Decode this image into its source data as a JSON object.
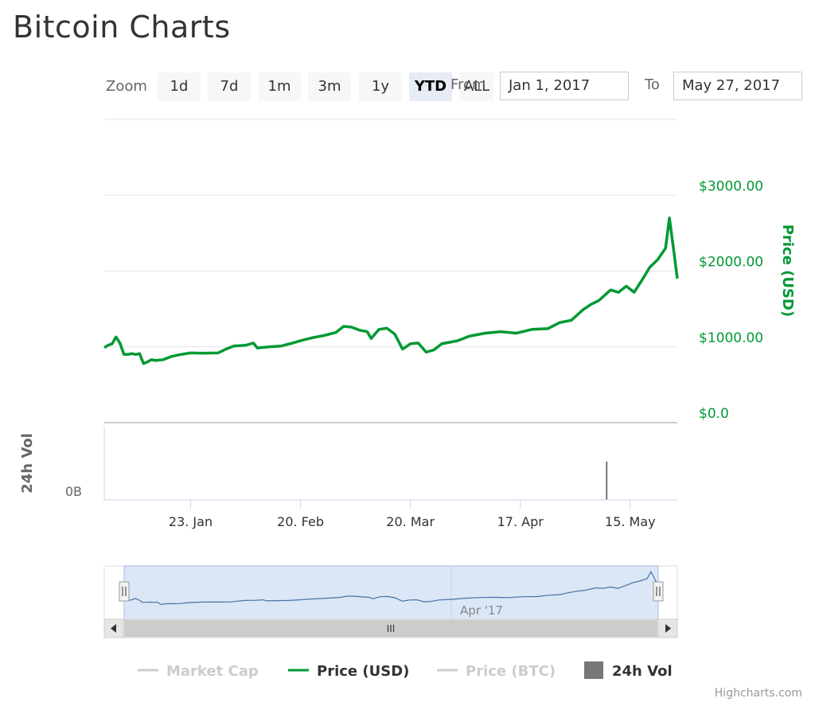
{
  "page": {
    "title": "Bitcoin Charts",
    "credits": "Highcharts.com"
  },
  "range_selector": {
    "zoom_label": "Zoom",
    "buttons": [
      "1d",
      "7d",
      "1m",
      "3m",
      "1y",
      "YTD",
      "ALL"
    ],
    "selected": "YTD",
    "from_label": "From",
    "from_value": "Jan 1, 2017",
    "to_label": "To",
    "to_value": "May 27, 2017"
  },
  "colors": {
    "price_usd": "#009933",
    "market_cap": "#cccccc",
    "price_btc": "#cccccc",
    "volume": "#777777",
    "navigator_fill": "#dbe7f6",
    "navigator_line": "#4572a7"
  },
  "chart_data": {
    "type": "line",
    "x_start": "2017-01-01",
    "x_end": "2017-05-27",
    "xaxis_ticks": [
      "23. Jan",
      "20. Feb",
      "20. Mar",
      "17. Apr",
      "15. May"
    ],
    "xaxis_tick_dates": [
      "2017-01-23",
      "2017-02-20",
      "2017-03-20",
      "2017-04-17",
      "2017-05-15"
    ],
    "price_axis": {
      "title": "Price (USD)",
      "ticks": [
        "$0.0",
        "$1000.00",
        "$2000.00",
        "$3000.00"
      ],
      "tick_values": [
        0,
        1000,
        2000,
        3000
      ],
      "ylim": [
        0,
        4000
      ],
      "position": "right"
    },
    "volume_axis": {
      "title": "24h Vol",
      "ticks": [
        "0B"
      ],
      "position": "left"
    },
    "series": [
      {
        "name": "Price (USD)",
        "visible": true,
        "points": [
          [
            "2017-01-01",
            990
          ],
          [
            "2017-01-02",
            1020
          ],
          [
            "2017-01-03",
            1040
          ],
          [
            "2017-01-04",
            1130
          ],
          [
            "2017-01-05",
            1050
          ],
          [
            "2017-01-06",
            900
          ],
          [
            "2017-01-07",
            900
          ],
          [
            "2017-01-08",
            910
          ],
          [
            "2017-01-09",
            900
          ],
          [
            "2017-01-10",
            910
          ],
          [
            "2017-01-11",
            780
          ],
          [
            "2017-01-12",
            800
          ],
          [
            "2017-01-13",
            830
          ],
          [
            "2017-01-14",
            820
          ],
          [
            "2017-01-16",
            830
          ],
          [
            "2017-01-18",
            870
          ],
          [
            "2017-01-20",
            895
          ],
          [
            "2017-01-23",
            920
          ],
          [
            "2017-01-26",
            915
          ],
          [
            "2017-01-30",
            920
          ],
          [
            "2017-02-01",
            970
          ],
          [
            "2017-02-03",
            1010
          ],
          [
            "2017-02-06",
            1020
          ],
          [
            "2017-02-08",
            1050
          ],
          [
            "2017-02-09",
            985
          ],
          [
            "2017-02-12",
            1000
          ],
          [
            "2017-02-15",
            1010
          ],
          [
            "2017-02-18",
            1050
          ],
          [
            "2017-02-20",
            1080
          ],
          [
            "2017-02-23",
            1120
          ],
          [
            "2017-02-26",
            1150
          ],
          [
            "2017-03-01",
            1190
          ],
          [
            "2017-03-03",
            1270
          ],
          [
            "2017-03-05",
            1260
          ],
          [
            "2017-03-07",
            1220
          ],
          [
            "2017-03-09",
            1200
          ],
          [
            "2017-03-10",
            1110
          ],
          [
            "2017-03-12",
            1230
          ],
          [
            "2017-03-14",
            1245
          ],
          [
            "2017-03-16",
            1170
          ],
          [
            "2017-03-18",
            970
          ],
          [
            "2017-03-20",
            1040
          ],
          [
            "2017-03-22",
            1050
          ],
          [
            "2017-03-24",
            930
          ],
          [
            "2017-03-26",
            960
          ],
          [
            "2017-03-28",
            1040
          ],
          [
            "2017-04-01",
            1080
          ],
          [
            "2017-04-04",
            1140
          ],
          [
            "2017-04-08",
            1180
          ],
          [
            "2017-04-12",
            1200
          ],
          [
            "2017-04-16",
            1180
          ],
          [
            "2017-04-20",
            1230
          ],
          [
            "2017-04-24",
            1240
          ],
          [
            "2017-04-27",
            1320
          ],
          [
            "2017-04-30",
            1350
          ],
          [
            "2017-05-03",
            1490
          ],
          [
            "2017-05-05",
            1560
          ],
          [
            "2017-05-07",
            1610
          ],
          [
            "2017-05-10",
            1750
          ],
          [
            "2017-05-12",
            1720
          ],
          [
            "2017-05-14",
            1800
          ],
          [
            "2017-05-16",
            1720
          ],
          [
            "2017-05-18",
            1880
          ],
          [
            "2017-05-20",
            2050
          ],
          [
            "2017-05-22",
            2150
          ],
          [
            "2017-05-24",
            2300
          ],
          [
            "2017-05-25",
            2700
          ],
          [
            "2017-05-26",
            2300
          ],
          [
            "2017-05-27",
            1900
          ]
        ]
      },
      {
        "name": "Market Cap",
        "visible": false
      },
      {
        "name": "Price (BTC)",
        "visible": false
      },
      {
        "name": "24h Vol",
        "visible": true,
        "type": "column",
        "points": [
          [
            "2017-05-09",
            1
          ]
        ]
      }
    ],
    "navigator": {
      "tick_label": "Apr '17",
      "tick_date": "2017-04-01",
      "scrollbar_grip": "III"
    },
    "legend": {
      "position": "bottom",
      "items": [
        "Market Cap",
        "Price (USD)",
        "Price (BTC)",
        "24h Vol"
      ],
      "visible": [
        false,
        true,
        false,
        true
      ]
    },
    "grid": true
  }
}
